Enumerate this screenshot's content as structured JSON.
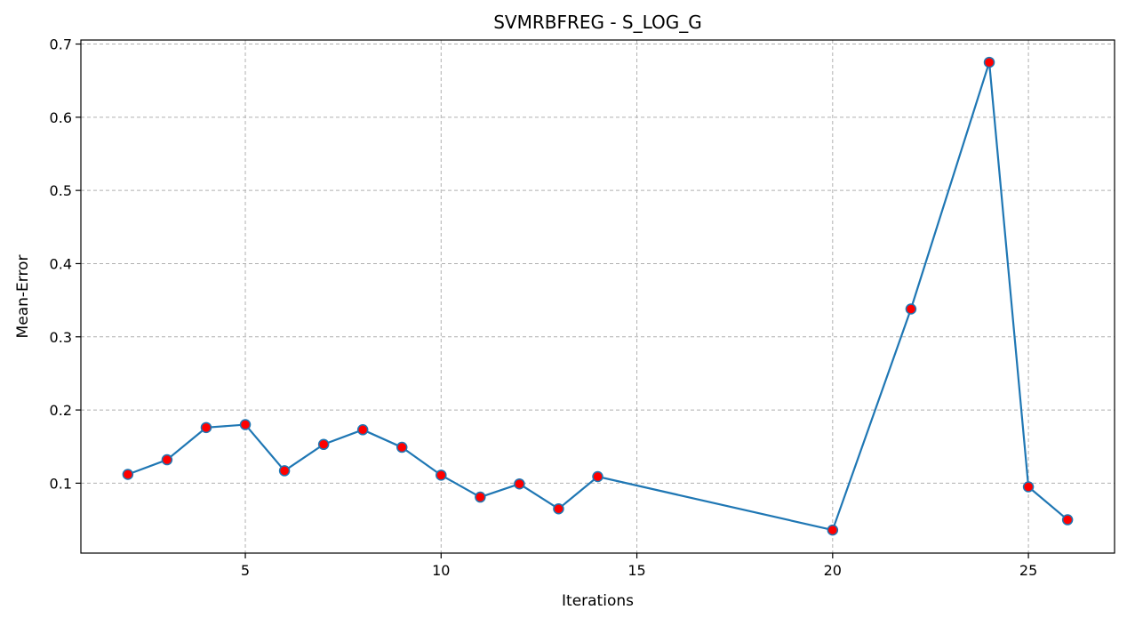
{
  "chart_data": {
    "type": "line",
    "title": "SVMRBFREG - S_LOG_G",
    "xlabel": "Iterations",
    "ylabel": "Mean-Error",
    "xlim": [
      0.8,
      27.2
    ],
    "ylim": [
      0.0045,
      0.7055
    ],
    "xticks": [
      5,
      10,
      15,
      20,
      25
    ],
    "yticks": [
      0.1,
      0.2,
      0.3,
      0.4,
      0.5,
      0.6,
      0.7
    ],
    "ytick_labels": [
      "0.1",
      "0.2",
      "0.3",
      "0.4",
      "0.5",
      "0.6",
      "0.7"
    ],
    "grid": true,
    "line_color": "#1f77b4",
    "marker_face_color": "#ff0000",
    "marker_edge_color": "#1f77b4",
    "grid_color": "#b0b0b0",
    "series": [
      {
        "x": [
          2,
          3,
          4,
          5,
          6,
          7,
          8,
          9,
          10,
          11,
          12,
          13,
          14,
          20,
          22,
          24,
          25,
          26
        ],
        "values": [
          0.112,
          0.132,
          0.176,
          0.18,
          0.117,
          0.153,
          0.173,
          0.149,
          0.111,
          0.081,
          0.099,
          0.065,
          0.109,
          0.036,
          0.338,
          0.675,
          0.095,
          0.05
        ]
      }
    ]
  }
}
